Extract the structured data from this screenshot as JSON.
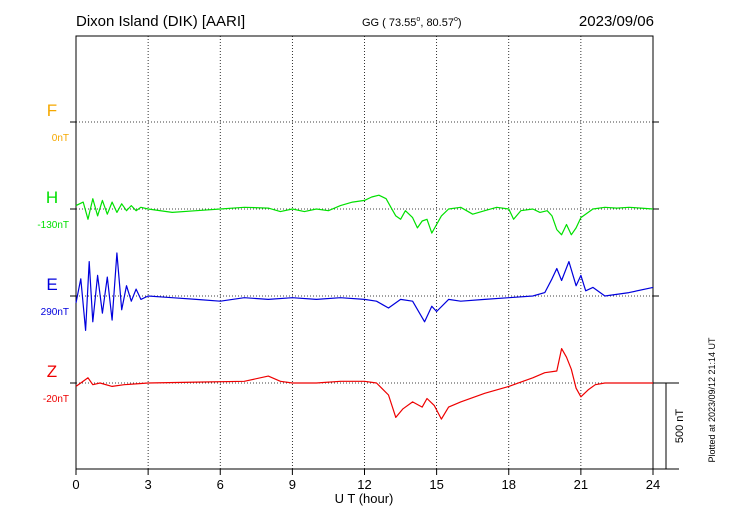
{
  "header": {
    "station": "Dixon Island (DIK)  [AARI]",
    "coords_prefix": "GG ( 73.55",
    "coords_sep": ",  80.57",
    "coords_suffix": ")",
    "degree_mark": "o",
    "date": "2023/09/06"
  },
  "side_note": "Plotted at 2023/09/12 21:14 UT",
  "scale_bar": {
    "label": "500 nT",
    "value_nT": 500
  },
  "colors": {
    "F": "#f5a800",
    "H": "#00e000",
    "E": "#0000dd",
    "Z": "#ee0000",
    "axis": "#000000"
  },
  "chart_data": {
    "type": "line",
    "xlabel": "U T (hour)",
    "xlim": [
      0,
      24
    ],
    "x_ticks": [
      "0",
      "3",
      "6",
      "9",
      "12",
      "15",
      "18",
      "21",
      "24"
    ],
    "grid": "dotted vertical every 3 h; dotted baseline per component",
    "series": [
      {
        "name": "F",
        "offset_label": "0nT",
        "baseline_nT": 0,
        "x": [],
        "y": []
      },
      {
        "name": "H",
        "offset_label": "-130nT",
        "baseline_nT": -130,
        "x": [
          0,
          0.3,
          0.5,
          0.7,
          0.9,
          1.1,
          1.3,
          1.5,
          1.7,
          1.9,
          2.1,
          2.3,
          2.5,
          2.7,
          3,
          4,
          5,
          6,
          7,
          8,
          8.5,
          9,
          9.5,
          10,
          10.5,
          11,
          11.5,
          12,
          12.3,
          12.6,
          12.9,
          13.1,
          13.3,
          13.5,
          13.7,
          14,
          14.2,
          14.4,
          14.6,
          14.8,
          15,
          15.2,
          15.5,
          16,
          16.5,
          17,
          17.5,
          18,
          18.2,
          18.5,
          19,
          19.3,
          19.6,
          19.8,
          20,
          20.2,
          20.4,
          20.6,
          20.8,
          21,
          21.5,
          22,
          22.5,
          23,
          23.5,
          24
        ],
        "y": [
          20,
          40,
          -60,
          60,
          -40,
          50,
          -30,
          40,
          -20,
          30,
          -10,
          20,
          -10,
          10,
          0,
          -20,
          -10,
          0,
          10,
          5,
          -15,
          0,
          -15,
          0,
          -10,
          20,
          40,
          50,
          70,
          80,
          60,
          10,
          -40,
          -60,
          -10,
          -50,
          -110,
          -70,
          -60,
          -140,
          -90,
          -40,
          0,
          10,
          -30,
          -10,
          10,
          0,
          -60,
          -10,
          0,
          -20,
          -10,
          -40,
          -120,
          -150,
          -90,
          -150,
          -110,
          -50,
          0,
          10,
          5,
          10,
          5,
          0
        ]
      },
      {
        "name": "E",
        "offset_label": "290nT",
        "baseline_nT": 290,
        "x": [
          0,
          0.2,
          0.4,
          0.55,
          0.7,
          0.9,
          1.1,
          1.3,
          1.5,
          1.7,
          1.9,
          2.1,
          2.3,
          2.5,
          2.7,
          3,
          4,
          5,
          6,
          7,
          8,
          9,
          10,
          11,
          12,
          12.5,
          13,
          13.5,
          14,
          14.5,
          14.8,
          15,
          15.5,
          16,
          17,
          18,
          19,
          19.5,
          19.8,
          20,
          20.2,
          20.5,
          20.8,
          21,
          21.2,
          21.5,
          22,
          23,
          24
        ],
        "y": [
          -40,
          100,
          -200,
          200,
          -150,
          120,
          -100,
          110,
          -140,
          250,
          -80,
          60,
          -30,
          40,
          -20,
          0,
          -10,
          -20,
          -30,
          -10,
          -20,
          -10,
          -20,
          -10,
          -20,
          -30,
          -70,
          -20,
          -30,
          -150,
          -60,
          -90,
          -20,
          -30,
          -20,
          -10,
          0,
          20,
          100,
          160,
          90,
          200,
          60,
          120,
          30,
          50,
          0,
          20,
          50
        ]
      },
      {
        "name": "Z",
        "offset_label": "-20nT",
        "baseline_nT": -20,
        "x": [
          0,
          0.5,
          0.7,
          1,
          1.5,
          2,
          3,
          5,
          7,
          8,
          8.5,
          9,
          10,
          11,
          12,
          12.5,
          13,
          13.3,
          13.6,
          14,
          14.4,
          14.6,
          14.9,
          15.2,
          15.5,
          16,
          17,
          18,
          19,
          19.5,
          20,
          20.2,
          20.4,
          20.6,
          20.8,
          21,
          21.3,
          21.6,
          22,
          24
        ],
        "y": [
          -20,
          30,
          -10,
          0,
          -20,
          -10,
          0,
          5,
          10,
          40,
          10,
          0,
          0,
          10,
          10,
          0,
          -70,
          -200,
          -150,
          -110,
          -140,
          -90,
          -130,
          -210,
          -140,
          -110,
          -60,
          -20,
          30,
          60,
          70,
          200,
          150,
          80,
          -30,
          -80,
          -40,
          -10,
          0,
          0
        ]
      }
    ]
  }
}
